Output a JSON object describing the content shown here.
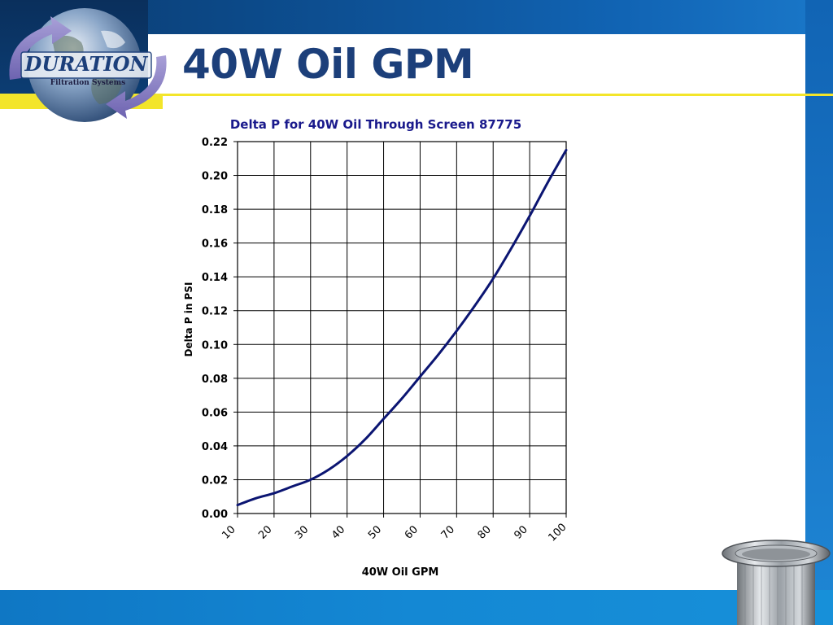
{
  "slide": {
    "title": "40W Oil GPM"
  },
  "logo": {
    "brand": "DURATION",
    "tagline": "Filtration Systems",
    "icon": "earth-globe-arrow-icon"
  },
  "decor": {
    "product_icon": "cylindrical-screen-filter-icon"
  },
  "colors": {
    "title": "#1c3f7a",
    "chart_title": "#1a1a8c",
    "series": "#0b1572",
    "accent_yellow": "#f3e52a",
    "frame_blue": "#1164b4"
  },
  "chart_data": {
    "type": "line",
    "title": "Delta P for 40W Oil Through Screen 87775",
    "xlabel": "40W Oil GPM",
    "ylabel": "Delta P in PSI",
    "xlim": [
      10,
      100
    ],
    "ylim": [
      0,
      0.22
    ],
    "x_ticks": [
      "10",
      "20",
      "30",
      "40",
      "50",
      "60",
      "70",
      "80",
      "90",
      "100"
    ],
    "y_ticks": [
      "0.00",
      "0.02",
      "0.04",
      "0.06",
      "0.08",
      "0.10",
      "0.12",
      "0.14",
      "0.16",
      "0.18",
      "0.20",
      "0.22"
    ],
    "grid": true,
    "legend": "none",
    "series": [
      {
        "x": [
          10,
          15,
          20,
          25,
          30,
          35,
          40,
          45,
          50,
          55,
          60,
          65,
          70,
          75,
          80,
          85,
          90,
          95,
          100
        ],
        "y": [
          0.005,
          0.009,
          0.012,
          0.016,
          0.02,
          0.026,
          0.034,
          0.044,
          0.056,
          0.068,
          0.081,
          0.094,
          0.108,
          0.123,
          0.139,
          0.157,
          0.176,
          0.196,
          0.215
        ]
      }
    ]
  }
}
